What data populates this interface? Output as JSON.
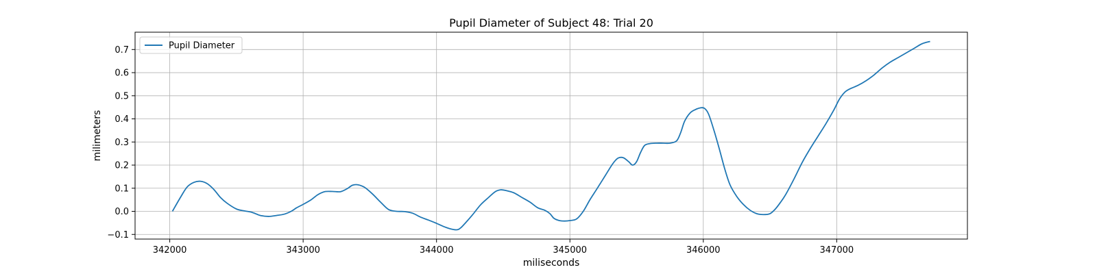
{
  "chart_data": {
    "type": "line",
    "title": "Pupil Diameter of Subject 48: Trial 20",
    "xlabel": "miliseconds",
    "ylabel": "milimeters",
    "xlim": [
      341740,
      347980
    ],
    "ylim": [
      -0.12,
      0.775
    ],
    "xticks": [
      342000,
      343000,
      344000,
      345000,
      346000,
      347000
    ],
    "xtick_labels": [
      "342000",
      "343000",
      "344000",
      "345000",
      "346000",
      "347000"
    ],
    "yticks": [
      -0.1,
      0.0,
      0.1,
      0.2,
      0.3,
      0.4,
      0.5,
      0.6,
      0.7
    ],
    "ytick_labels": [
      "−0.1",
      "0.0",
      "0.1",
      "0.2",
      "0.3",
      "0.4",
      "0.5",
      "0.6",
      "0.7"
    ],
    "grid": true,
    "legend_position": "top-left",
    "series": [
      {
        "name": "Pupil Diameter",
        "color": "#1f77b4",
        "x": [
          342020,
          342080,
          342130,
          342180,
          342230,
          342280,
          342330,
          342380,
          342430,
          342500,
          342560,
          342620,
          342680,
          342740,
          342800,
          342860,
          342910,
          342950,
          343000,
          343060,
          343110,
          343160,
          343220,
          343280,
          343330,
          343370,
          343410,
          343460,
          343520,
          343580,
          343640,
          343700,
          343760,
          343820,
          343880,
          343940,
          344000,
          344050,
          344100,
          344150,
          344180,
          344220,
          344270,
          344330,
          344390,
          344440,
          344480,
          344520,
          344580,
          344640,
          344700,
          344760,
          344810,
          344850,
          344880,
          344920,
          344960,
          345000,
          345050,
          345100,
          345150,
          345200,
          345260,
          345320,
          345360,
          345400,
          345440,
          345470,
          345500,
          345530,
          345560,
          345600,
          345650,
          345700,
          345750,
          345800,
          345830,
          345860,
          345900,
          345940,
          345980,
          346010,
          346040,
          346080,
          346120,
          346160,
          346200,
          346250,
          346300,
          346350,
          346400,
          346450,
          346500,
          346540,
          346580,
          346620,
          346680,
          346740,
          346800,
          346860,
          346920,
          346980,
          347020,
          347060,
          347100,
          347160,
          347220,
          347280,
          347340,
          347400,
          347460,
          347520,
          347580,
          347640,
          347700
        ],
        "y": [
          0.0,
          0.06,
          0.105,
          0.125,
          0.13,
          0.12,
          0.095,
          0.06,
          0.035,
          0.01,
          0.002,
          -0.005,
          -0.018,
          -0.022,
          -0.018,
          -0.012,
          0.0,
          0.015,
          0.03,
          0.05,
          0.072,
          0.085,
          0.086,
          0.085,
          0.098,
          0.113,
          0.115,
          0.104,
          0.075,
          0.04,
          0.008,
          0.0,
          -0.001,
          -0.008,
          -0.025,
          -0.038,
          -0.052,
          -0.065,
          -0.075,
          -0.08,
          -0.072,
          -0.048,
          -0.015,
          0.028,
          0.06,
          0.085,
          0.093,
          0.09,
          0.08,
          0.06,
          0.04,
          0.015,
          0.005,
          -0.01,
          -0.03,
          -0.04,
          -0.042,
          -0.04,
          -0.033,
          0.0,
          0.05,
          0.095,
          0.15,
          0.205,
          0.23,
          0.232,
          0.215,
          0.2,
          0.215,
          0.255,
          0.285,
          0.293,
          0.295,
          0.295,
          0.295,
          0.305,
          0.34,
          0.39,
          0.425,
          0.44,
          0.448,
          0.445,
          0.42,
          0.35,
          0.27,
          0.185,
          0.115,
          0.065,
          0.03,
          0.005,
          -0.01,
          -0.014,
          -0.01,
          0.01,
          0.04,
          0.075,
          0.14,
          0.21,
          0.27,
          0.325,
          0.38,
          0.44,
          0.485,
          0.515,
          0.53,
          0.545,
          0.565,
          0.59,
          0.62,
          0.645,
          0.665,
          0.685,
          0.705,
          0.725,
          0.735
        ]
      }
    ]
  }
}
